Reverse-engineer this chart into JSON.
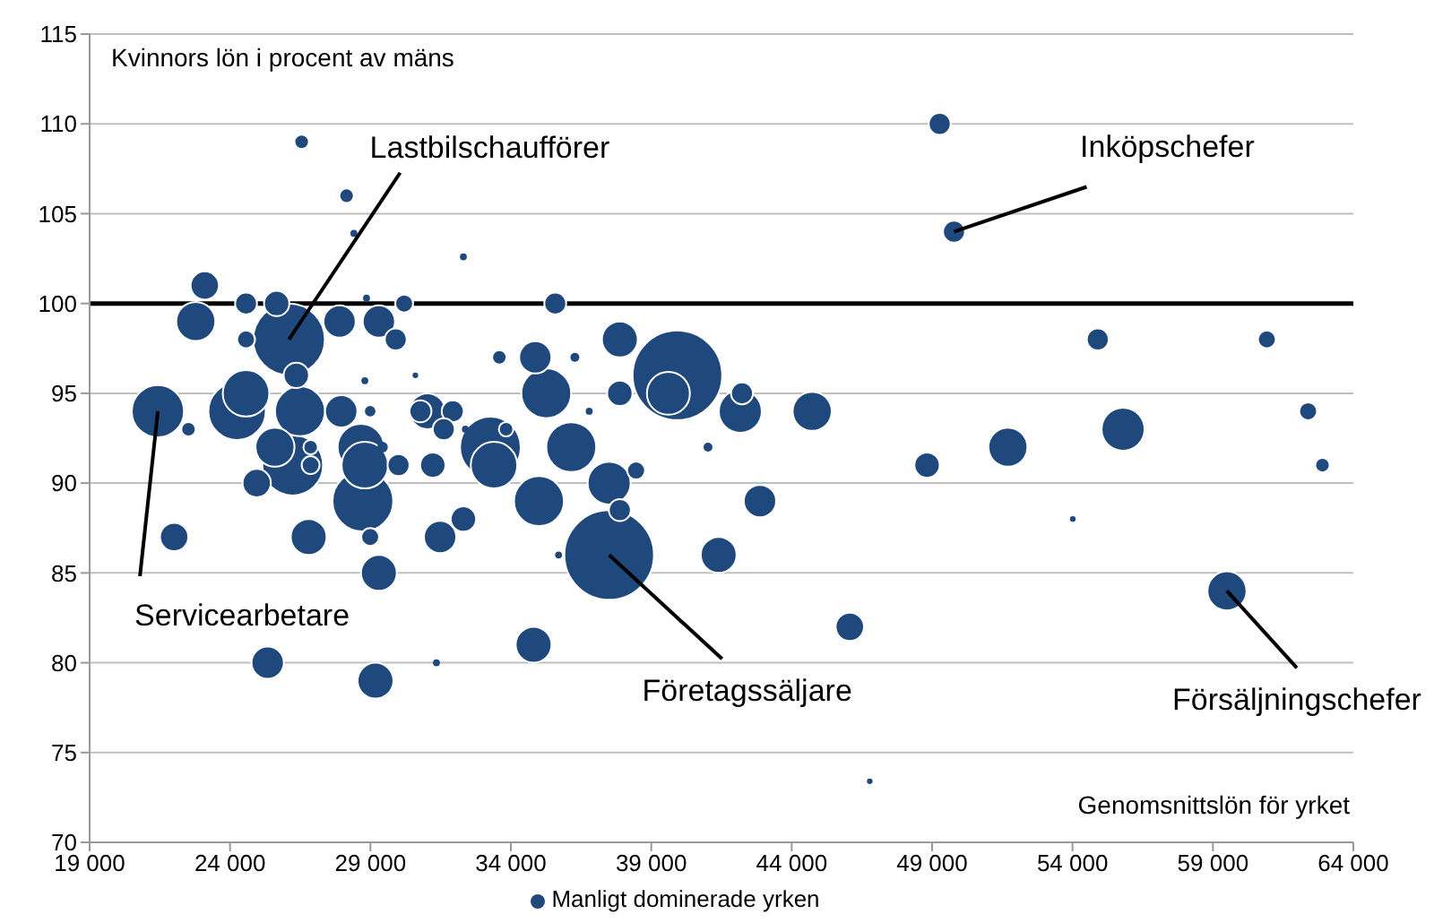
{
  "chart_data": {
    "type": "bubble",
    "ylabel": "Kvinnors lön i procent av mäns",
    "xlabel": "Genomsnittslön för yrket",
    "x": [
      37500,
      39930,
      26100,
      26230,
      28730,
      33270,
      24250,
      21430,
      26490,
      35260,
      36150,
      35000,
      24570,
      28660,
      28800,
      33400,
      39610,
      37500,
      42170,
      55800,
      22780,
      25600,
      44730,
      51700,
      59500,
      26800,
      29300,
      29180,
      31030,
      37880,
      34810,
      41400,
      27900,
      29300,
      27960,
      31480,
      34870,
      42870,
      25340,
      23100,
      24950,
      22010,
      46070,
      25660,
      26360,
      31220,
      32310,
      37880,
      48820,
      24570,
      29900,
      30000,
      30780,
      31930,
      31610,
      35580,
      37880,
      42230,
      49270,
      49780,
      54900,
      30200,
      24570,
      26870,
      28990,
      38460,
      60920,
      62390,
      22520,
      26870,
      33590,
      26550,
      28150,
      62900,
      33830,
      28990,
      29430,
      41020,
      36280,
      28800,
      32310,
      28410,
      28860,
      32380,
      35700,
      36790,
      31350,
      30600,
      54010,
      46780
    ],
    "series": [
      {
        "name": "Manligt dominerade yrken",
        "color": "#1f497d",
        "values": [
          86,
          96,
          98,
          91,
          89,
          92,
          94,
          94,
          94,
          95,
          92,
          89,
          95,
          92,
          91,
          91,
          95,
          90,
          94,
          93,
          99,
          92,
          94,
          92,
          84,
          87,
          85,
          79,
          94,
          98,
          81,
          86,
          99,
          99,
          94,
          87,
          97,
          89,
          80,
          101,
          90,
          87,
          82,
          100,
          96,
          91,
          88,
          95,
          91,
          100,
          98,
          91,
          94,
          94,
          93,
          100,
          88.5,
          95,
          110,
          104,
          98,
          100,
          98,
          91,
          87,
          90.7,
          98,
          94,
          93,
          92,
          97,
          109,
          106,
          91,
          93,
          94,
          92,
          92,
          97,
          95.7,
          102.6,
          103.9,
          100.3,
          93,
          86,
          94,
          80,
          96,
          88,
          73.4
        ],
        "sizes": [
          1,
          1,
          0.64,
          0.46,
          0.46,
          0.46,
          0.41,
          0.34,
          0.31,
          0.31,
          0.31,
          0.31,
          0.27,
          0.27,
          0.27,
          0.27,
          0.23,
          0.23,
          0.23,
          0.23,
          0.19,
          0.19,
          0.19,
          0.19,
          0.19,
          0.16,
          0.16,
          0.16,
          0.16,
          0.16,
          0.16,
          0.16,
          0.13,
          0.13,
          0.13,
          0.13,
          0.13,
          0.13,
          0.13,
          0.1,
          0.1,
          0.1,
          0.1,
          0.08,
          0.08,
          0.08,
          0.08,
          0.08,
          0.08,
          0.06,
          0.06,
          0.06,
          0.06,
          0.06,
          0.06,
          0.06,
          0.06,
          0.06,
          0.06,
          0.06,
          0.06,
          0.04,
          0.04,
          0.04,
          0.04,
          0.04,
          0.04,
          0.04,
          0.026,
          0.026,
          0.026,
          0.026,
          0.026,
          0.026,
          0.026,
          0.014,
          0.014,
          0.01,
          0.01,
          0.006,
          0.006,
          0.006,
          0.006,
          0.006,
          0.006,
          0.006,
          0.006,
          0.004,
          0.004,
          0.004
        ]
      }
    ],
    "xlim": [
      19000,
      64000
    ],
    "xticks": [
      {
        "value": 19000,
        "label": "19 000"
      },
      {
        "value": 24000,
        "label": "24 000"
      },
      {
        "value": 29000,
        "label": "29 000"
      },
      {
        "value": 34000,
        "label": "34 000"
      },
      {
        "value": 39000,
        "label": "39 000"
      },
      {
        "value": 44000,
        "label": "44 000"
      },
      {
        "value": 49000,
        "label": "49 000"
      },
      {
        "value": 54000,
        "label": "54 000"
      },
      {
        "value": 59000,
        "label": "59 000"
      },
      {
        "value": 64000,
        "label": "64 000"
      }
    ],
    "ylim": [
      70,
      115
    ],
    "yticks": [
      70,
      75,
      80,
      85,
      90,
      95,
      100,
      105,
      110,
      115
    ],
    "ref_lines": [
      {
        "axis": "y",
        "value": 100,
        "color": "#000000"
      }
    ],
    "annotations": [
      {
        "text": "Lastbilschaufförer",
        "x": 26100,
        "y": 98
      },
      {
        "text": "Servicearbetare",
        "x": 21430,
        "y": 94
      },
      {
        "text": "Inköpschefer",
        "x": 49780,
        "y": 104
      },
      {
        "text": "Företagssäljare",
        "x": 37500,
        "y": 86
      },
      {
        "text": "Försäljningschefer",
        "x": 59500,
        "y": 84
      }
    ],
    "grid": "y",
    "legend": "bottom",
    "marker": "circle"
  }
}
